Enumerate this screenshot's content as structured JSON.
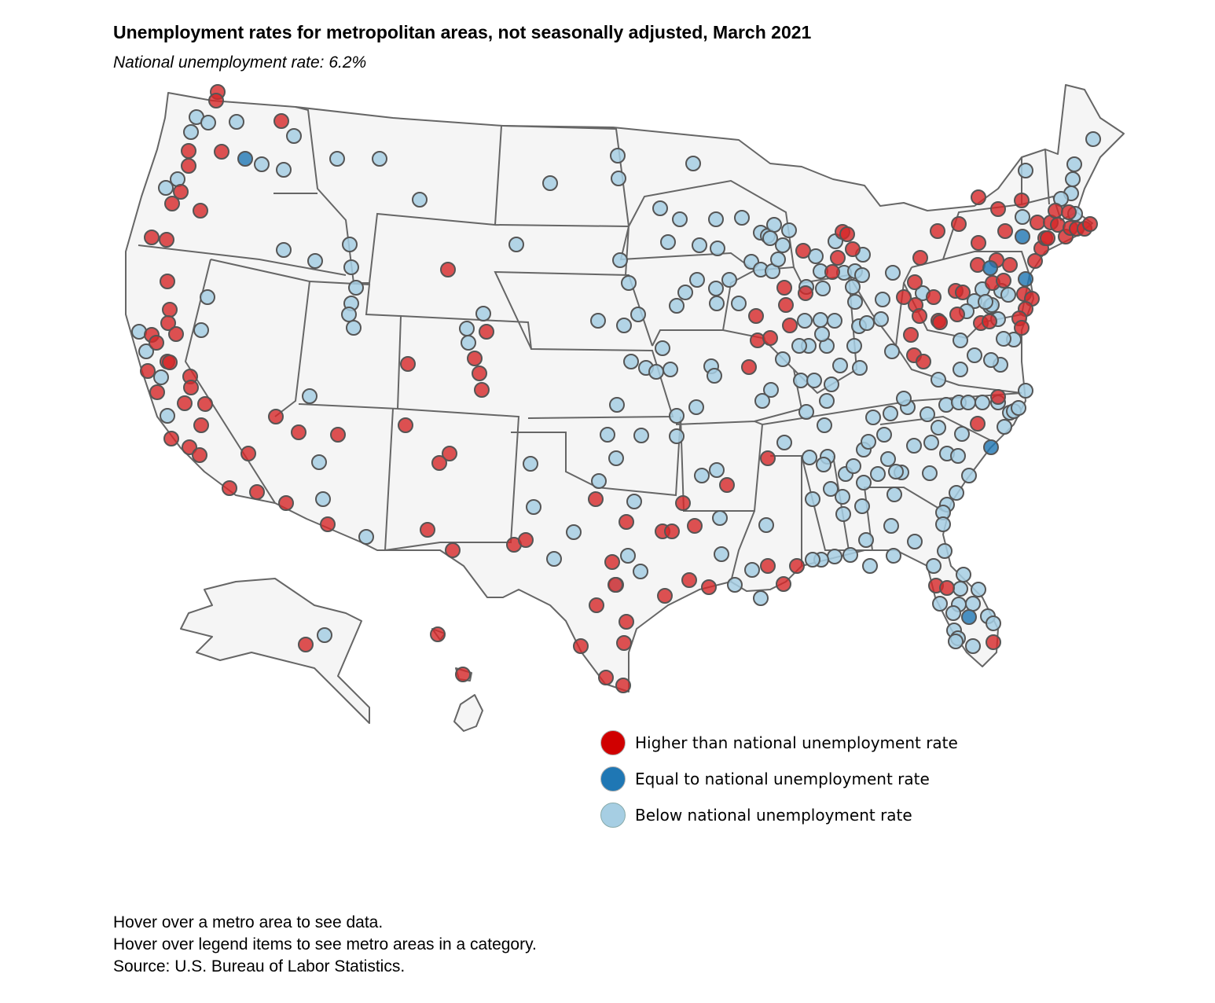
{
  "header": {
    "title": "Unemployment rates for metropolitan areas, not seasonally adjusted, March 2021",
    "subtitle": "National unemployment rate: 6.2%"
  },
  "colors": {
    "higher": "#d62728",
    "equal": "#1f77b4",
    "below": "#a6cee3"
  },
  "legend": {
    "items": [
      {
        "key": "higher",
        "label": "Higher than national unemployment rate",
        "color": "#d62728"
      },
      {
        "key": "equal",
        "label": "Equal to national unemployment rate",
        "color": "#1f77b4"
      },
      {
        "key": "below",
        "label": "Below national unemployment rate",
        "color": "#a6cee3"
      }
    ]
  },
  "notes": {
    "line1": "Hover over a metro area to see data.",
    "line2": "Hover over legend items to see metro areas in a category.",
    "line3": "Source: U.S. Bureau of Labor Statistics."
  },
  "chart_data": {
    "type": "scatter",
    "national_rate": 6.2,
    "categories": [
      "higher",
      "equal",
      "below"
    ],
    "metro_counts_approx": {
      "higher": 150,
      "equal": 8,
      "below": 230
    }
  }
}
